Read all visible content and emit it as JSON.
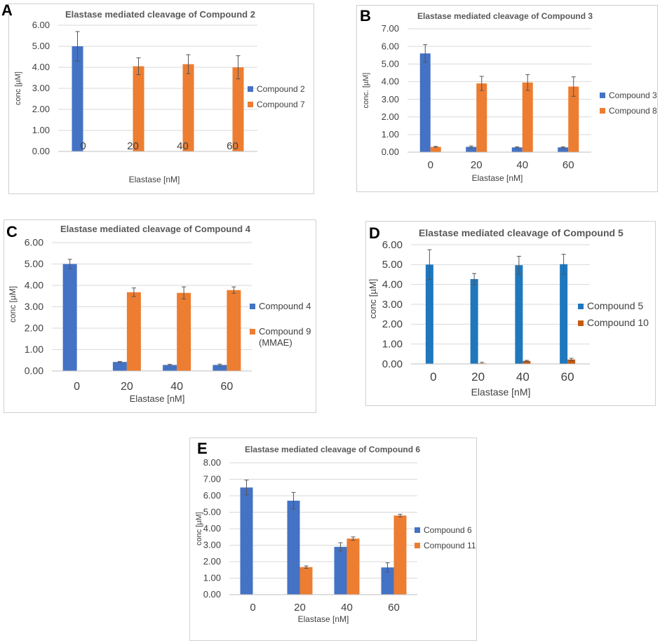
{
  "figure": {
    "colors": {
      "blue_ab": "#4472c4",
      "orange": "#ed7d31",
      "blue_d": "#1f77bd",
      "orange_d": "#c55a11",
      "grid": "#d9d9d9",
      "text": "#595959"
    }
  },
  "chart_data": [
    {
      "panel": "A",
      "type": "bar",
      "title": "Elastase mediated cleavage of Compound 2",
      "xlabel": "Elastase [nM]",
      "ylabel": "conc [µM]",
      "categories": [
        "0",
        "20",
        "40",
        "60"
      ],
      "ylim": [
        0,
        6
      ],
      "yticks": [
        "0.00",
        "1.00",
        "2.00",
        "3.00",
        "4.00",
        "5.00",
        "6.00"
      ],
      "series": [
        {
          "name": "Compound 2",
          "color": "#4472c4",
          "values": [
            5.0,
            null,
            null,
            null
          ],
          "errors": [
            0.7,
            null,
            null,
            null
          ]
        },
        {
          "name": "Compound 7",
          "color": "#ed7d31",
          "values": [
            null,
            4.05,
            4.15,
            4.0
          ],
          "errors": [
            null,
            0.4,
            0.45,
            0.55
          ]
        }
      ],
      "legend": "right"
    },
    {
      "panel": "B",
      "type": "bar",
      "title": "Elastase mediated cleavage of Compound 3",
      "xlabel": "Elastase [nM]",
      "ylabel": "conc. [µM]",
      "categories": [
        "0",
        "20",
        "40",
        "60"
      ],
      "ylim": [
        0,
        7
      ],
      "yticks": [
        "0.00",
        "1.00",
        "2.00",
        "3.00",
        "4.00",
        "5.00",
        "6.00",
        "7.00"
      ],
      "series": [
        {
          "name": "Compound 3",
          "color": "#4472c4",
          "values": [
            5.6,
            0.3,
            0.27,
            0.27
          ],
          "errors": [
            0.5,
            0.05,
            0.03,
            0.03
          ]
        },
        {
          "name": "Compound 8",
          "color": "#ed7d31",
          "values": [
            0.3,
            3.9,
            3.95,
            3.72
          ],
          "errors": [
            0.03,
            0.4,
            0.45,
            0.55
          ]
        }
      ],
      "legend": "right"
    },
    {
      "panel": "C",
      "type": "bar",
      "title": "Elastase mediated cleavage of Compound 4",
      "xlabel": "Elastase [nM]",
      "ylabel": "conc [µM]",
      "categories": [
        "0",
        "20",
        "40",
        "60"
      ],
      "ylim": [
        0,
        6
      ],
      "yticks": [
        "0.00",
        "1.00",
        "2.00",
        "3.00",
        "4.00",
        "5.00",
        "6.00"
      ],
      "series": [
        {
          "name": "Compound 4",
          "color": "#4472c4",
          "values": [
            5.0,
            0.42,
            0.28,
            0.28
          ],
          "errors": [
            0.22,
            0.02,
            0.03,
            0.04
          ]
        },
        {
          "name": "Compound 9 (MMAE)",
          "color": "#ed7d31",
          "values": [
            null,
            3.68,
            3.65,
            3.78
          ],
          "errors": [
            null,
            0.2,
            0.28,
            0.15
          ]
        }
      ],
      "legend": "right"
    },
    {
      "panel": "D",
      "type": "bar",
      "title": "Elastase mediated cleavage of Compound 5",
      "xlabel": "Elastase [nM]",
      "ylabel": "conc [µM]",
      "categories": [
        "0",
        "20",
        "40",
        "60"
      ],
      "ylim": [
        0,
        6
      ],
      "yticks": [
        "0.00",
        "1.00",
        "2.00",
        "3.00",
        "4.00",
        "5.00",
        "6.00"
      ],
      "series": [
        {
          "name": "Compound 5",
          "color": "#1f77bd",
          "values": [
            5.0,
            4.27,
            4.97,
            5.02
          ],
          "errors": [
            0.75,
            0.28,
            0.45,
            0.5
          ]
        },
        {
          "name": "Compound 10",
          "color": "#c55a11",
          "values": [
            null,
            0.03,
            0.15,
            0.22
          ],
          "errors": [
            null,
            0.05,
            0.03,
            0.06
          ]
        }
      ],
      "legend": "right"
    },
    {
      "panel": "E",
      "type": "bar",
      "title": "Elastase mediated cleavage of Compound 6",
      "xlabel": "Elastase [nM]",
      "ylabel": "conc [µM]",
      "categories": [
        "0",
        "20",
        "40",
        "60"
      ],
      "ylim": [
        0,
        8
      ],
      "yticks": [
        "0.00",
        "1.00",
        "2.00",
        "3.00",
        "4.00",
        "5.00",
        "6.00",
        "7.00",
        "8.00"
      ],
      "series": [
        {
          "name": "Compound 6",
          "color": "#4472c4",
          "values": [
            6.5,
            5.7,
            2.9,
            1.65
          ],
          "errors": [
            0.45,
            0.5,
            0.25,
            0.28
          ]
        },
        {
          "name": "Compound 11",
          "color": "#ed7d31",
          "values": [
            null,
            1.67,
            3.4,
            4.8
          ],
          "errors": [
            null,
            0.07,
            0.1,
            0.08
          ]
        }
      ],
      "legend": "right"
    }
  ]
}
